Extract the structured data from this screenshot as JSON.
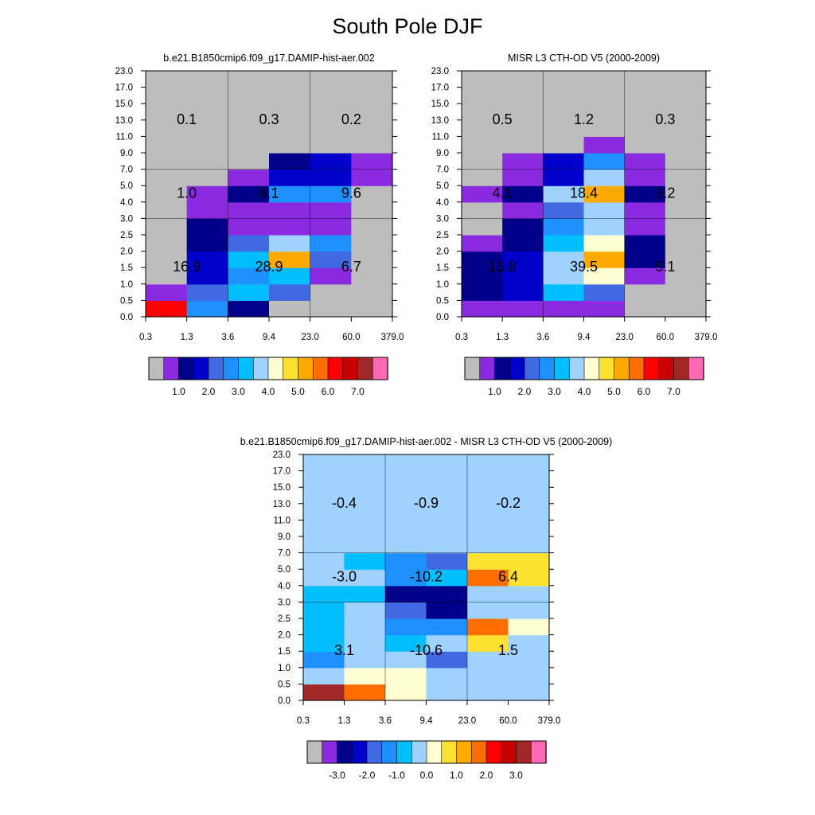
{
  "page": {
    "title": "South Pole DJF"
  },
  "chart_data": [
    {
      "type": "heatmap",
      "title": "b.e21.B1850cmip6.f09_g17.DAMIP-hist-aer.002",
      "xlabel": "",
      "ylabel": "",
      "x_edges": [
        "0.3",
        "1.3",
        "3.6",
        "9.4",
        "23.0",
        "60.0",
        "379.0"
      ],
      "y_edges": [
        "0.0",
        "0.5",
        "1.0",
        "1.5",
        "2.0",
        "2.5",
        "3.0",
        "4.0",
        "5.0",
        "7.0",
        "9.0",
        "11.0",
        "13.0",
        "15.0",
        "17.0",
        "23.0"
      ],
      "colorbar": {
        "labels": [
          "1.0",
          "2.0",
          "3.0",
          "4.0",
          "5.0",
          "6.0",
          "7.0"
        ]
      },
      "group_values": [
        [
          "16.9",
          "28.9",
          "6.7"
        ],
        [
          "1.0",
          "8.1",
          "9.6"
        ],
        [
          "0.1",
          "0.3",
          "0.2"
        ]
      ],
      "cell_color_index": [
        [
          12,
          5,
          2,
          0,
          0,
          0
        ],
        [
          1,
          4,
          6,
          4,
          0,
          0
        ],
        [
          0,
          3,
          5,
          6,
          1,
          0
        ],
        [
          0,
          3,
          6,
          10,
          4,
          0
        ],
        [
          0,
          2,
          4,
          7,
          5,
          0
        ],
        [
          0,
          2,
          1,
          1,
          1,
          0
        ],
        [
          0,
          1,
          1,
          1,
          1,
          0
        ],
        [
          0,
          1,
          2,
          5,
          5,
          0
        ],
        [
          0,
          0,
          1,
          3,
          3,
          1
        ],
        [
          0,
          0,
          0,
          2,
          3,
          1
        ],
        [
          0,
          0,
          0,
          0,
          0,
          0
        ],
        [
          0,
          0,
          0,
          0,
          0,
          0
        ],
        [
          0,
          0,
          0,
          0,
          0,
          0
        ],
        [
          0,
          0,
          0,
          0,
          0,
          0
        ],
        [
          0,
          0,
          0,
          0,
          0,
          0
        ]
      ]
    },
    {
      "type": "heatmap",
      "title": "MISR L3 CTH-OD V5 (2000-2009)",
      "xlabel": "",
      "ylabel": "",
      "x_edges": [
        "0.3",
        "1.3",
        "3.6",
        "9.4",
        "23.0",
        "60.0",
        "379.0"
      ],
      "y_edges": [
        "0.0",
        "0.5",
        "1.0",
        "1.5",
        "2.0",
        "2.5",
        "3.0",
        "4.0",
        "5.0",
        "7.0",
        "9.0",
        "11.0",
        "13.0",
        "15.0",
        "17.0",
        "23.0"
      ],
      "colorbar": {
        "labels": [
          "1.0",
          "2.0",
          "3.0",
          "4.0",
          "5.0",
          "6.0",
          "7.0"
        ]
      },
      "group_values": [
        [
          "13.8",
          "39.5",
          "5.1"
        ],
        [
          "4.1",
          "18.4",
          "3.2"
        ],
        [
          "0.5",
          "1.2",
          "0.3"
        ]
      ],
      "cell_color_index": [
        [
          1,
          1,
          1,
          1,
          0,
          0
        ],
        [
          2,
          3,
          6,
          4,
          0,
          0
        ],
        [
          2,
          3,
          7,
          8,
          1,
          0
        ],
        [
          2,
          3,
          7,
          10,
          2,
          0
        ],
        [
          1,
          2,
          6,
          8,
          2,
          0
        ],
        [
          0,
          2,
          5,
          7,
          1,
          0
        ],
        [
          0,
          1,
          4,
          7,
          1,
          0
        ],
        [
          1,
          2,
          7,
          10,
          2,
          0
        ],
        [
          0,
          1,
          3,
          7,
          1,
          0
        ],
        [
          0,
          1,
          3,
          5,
          1,
          0
        ],
        [
          0,
          0,
          0,
          1,
          0,
          0
        ],
        [
          0,
          0,
          0,
          0,
          0,
          0
        ],
        [
          0,
          0,
          0,
          0,
          0,
          0
        ],
        [
          0,
          0,
          0,
          0,
          0,
          0
        ],
        [
          0,
          0,
          0,
          0,
          0,
          0
        ]
      ]
    },
    {
      "type": "heatmap",
      "title": "b.e21.B1850cmip6.f09_g17.DAMIP-hist-aer.002 - MISR L3 CTH-OD V5 (2000-2009)",
      "xlabel": "",
      "ylabel": "",
      "x_edges": [
        "0.3",
        "1.3",
        "3.6",
        "9.4",
        "23.0",
        "60.0",
        "379.0"
      ],
      "y_edges": [
        "0.0",
        "0.5",
        "1.0",
        "1.5",
        "2.0",
        "2.5",
        "3.0",
        "4.0",
        "5.0",
        "7.0",
        "9.0",
        "11.0",
        "13.0",
        "15.0",
        "17.0",
        "23.0"
      ],
      "colorbar": {
        "labels": [
          "-3.0",
          "-2.0",
          "-1.0",
          "0.0",
          "1.0",
          "2.0",
          "3.0"
        ]
      },
      "group_values": [
        [
          "3.1",
          "-10.6",
          "1.5"
        ],
        [
          "-3.0",
          "-10.2",
          "6.4"
        ],
        [
          "-0.4",
          "-0.9",
          "-0.2"
        ]
      ],
      "cell_color_index": [
        [
          14,
          11,
          8,
          7,
          7,
          7
        ],
        [
          7,
          8,
          8,
          7,
          7,
          7
        ],
        [
          5,
          7,
          7,
          4,
          7,
          7
        ],
        [
          6,
          7,
          6,
          7,
          9,
          7
        ],
        [
          6,
          7,
          5,
          5,
          11,
          8
        ],
        [
          6,
          7,
          4,
          2,
          7,
          7
        ],
        [
          6,
          6,
          2,
          2,
          7,
          7
        ],
        [
          7,
          7,
          5,
          6,
          11,
          9
        ],
        [
          7,
          6,
          5,
          4,
          9,
          9
        ],
        [
          7,
          7,
          7,
          7,
          7,
          7
        ],
        [
          7,
          7,
          7,
          7,
          7,
          7
        ],
        [
          7,
          7,
          7,
          7,
          7,
          7
        ],
        [
          7,
          7,
          7,
          7,
          7,
          7
        ],
        [
          7,
          7,
          7,
          7,
          7,
          7
        ],
        [
          7,
          7,
          7,
          7,
          7,
          7
        ]
      ]
    }
  ],
  "palette": [
    "#bdbdbd",
    "#8a2be2",
    "#00008b",
    "#0000cd",
    "#4169e1",
    "#1e90ff",
    "#00bfff",
    "#a0d2ff",
    "#ffffd2",
    "#ffe132",
    "#ffaa00",
    "#ff6e00",
    "#ff0000",
    "#c80000",
    "#a02828",
    "#ff69b4"
  ]
}
